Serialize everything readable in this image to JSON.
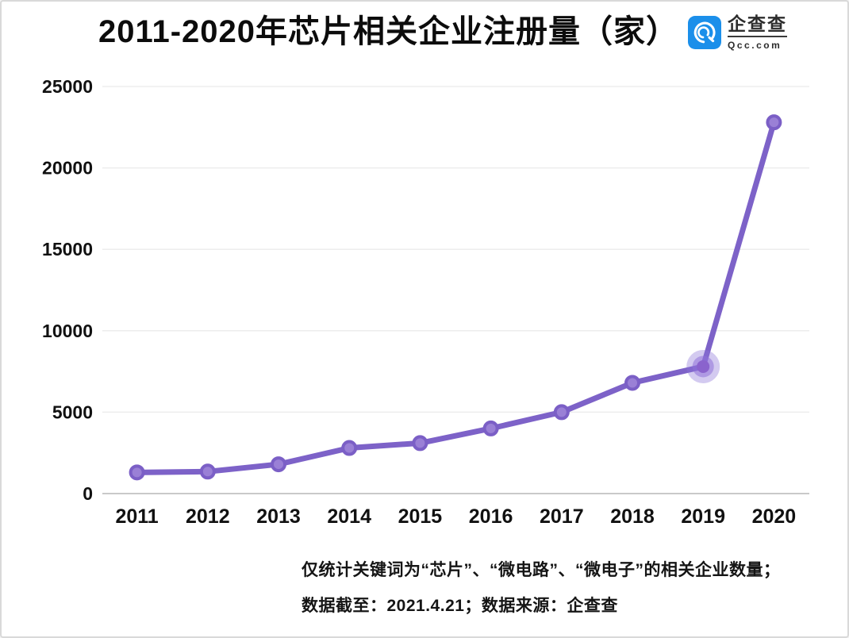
{
  "header": {
    "title": "2011-2020年芯片相关企业注册量（家）",
    "logo": {
      "name": "企查查",
      "domain": "Qcc.com",
      "brand_color": "#1B8FEA"
    }
  },
  "chart_data": {
    "type": "line",
    "title": "2011-2020年芯片相关企业注册量（家）",
    "categories": [
      "2011",
      "2012",
      "2013",
      "2014",
      "2015",
      "2016",
      "2017",
      "2018",
      "2019",
      "2020"
    ],
    "values": [
      1300,
      1350,
      1800,
      2800,
      3100,
      4000,
      5000,
      6800,
      7800,
      22800
    ],
    "xlabel": "",
    "ylabel": "",
    "ylim": [
      0,
      25000
    ],
    "yticks": [
      0,
      5000,
      10000,
      15000,
      20000,
      25000
    ],
    "grid": true,
    "legend": false,
    "highlighted_index": 8,
    "colors": {
      "line": "#7D62C8",
      "marker_fill": "#9A80D6",
      "marker_stroke": "#7B5FC6",
      "highlight_halo": "rgba(139,115,215,0.38)",
      "highlight_ring": "rgba(143,113,216,0.55)",
      "highlight_core": "#8A63CD",
      "gridline": "#ededed",
      "axis_line": "#c9c9c9"
    }
  },
  "footnotes": {
    "line1": "仅统计关键词为“芯片”、“微电路”、“微电子”的相关企业数量；",
    "line2": "数据截至：2021.4.21；数据来源：企查查"
  }
}
